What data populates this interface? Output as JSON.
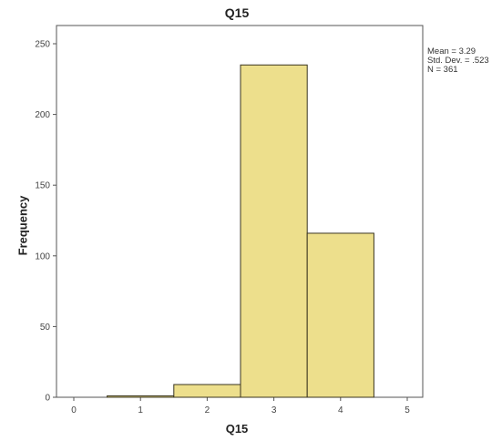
{
  "chart_data": {
    "type": "bar",
    "title": "Q15",
    "xlabel": "Q15",
    "ylabel": "Frequency",
    "categories": [
      "1",
      "2",
      "3",
      "4"
    ],
    "bins": [
      {
        "center": 1,
        "value": 1
      },
      {
        "center": 2,
        "value": 9
      },
      {
        "center": 3,
        "value": 235
      },
      {
        "center": 4,
        "value": 116
      }
    ],
    "x_ticks": [
      0,
      1,
      2,
      3,
      4,
      5
    ],
    "y_ticks": [
      0,
      50,
      100,
      150,
      200,
      250
    ],
    "xlim": [
      0,
      5
    ],
    "ylim": [
      0,
      250
    ],
    "grid": false,
    "bar_color": "#eddf8c",
    "bar_edge": "#3a3520",
    "stats": {
      "mean": "Mean = 3.29",
      "std": "Std. Dev. = .523",
      "n": "N = 361"
    }
  }
}
